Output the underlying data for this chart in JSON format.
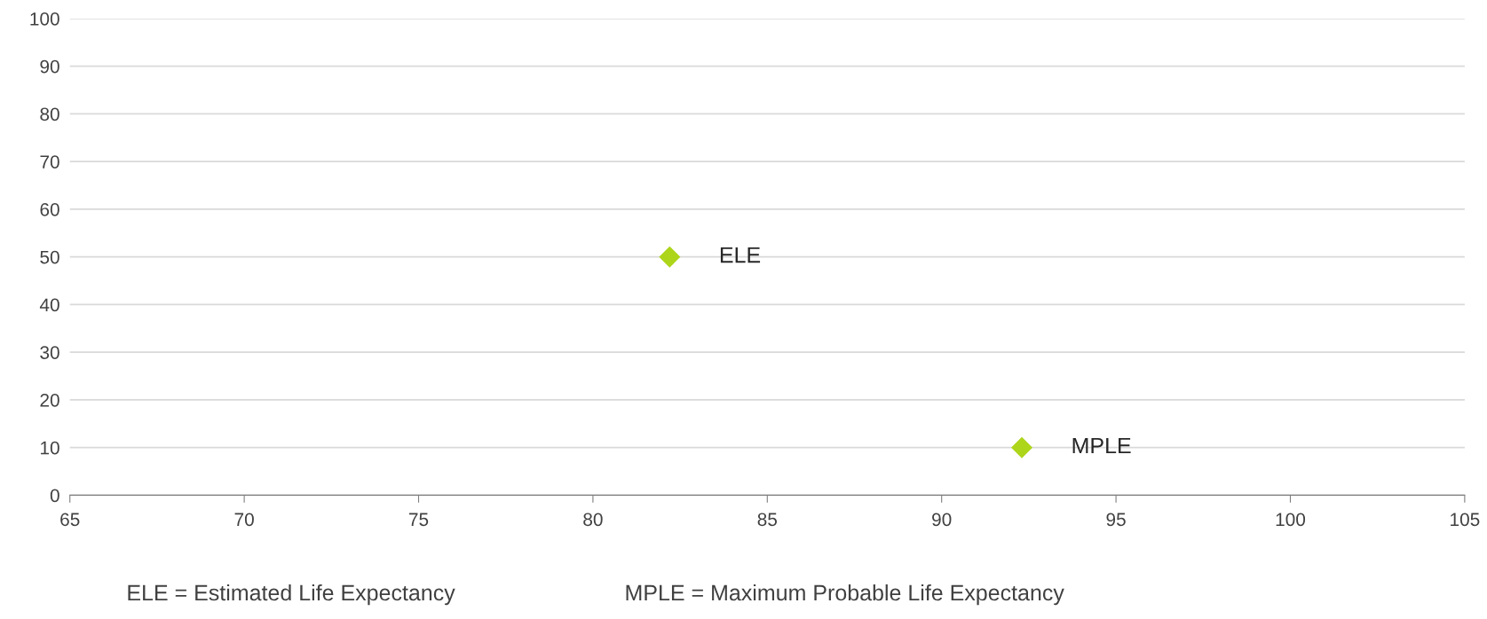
{
  "chart_data": {
    "type": "scatter",
    "x": [
      82.2,
      92.3
    ],
    "values": [
      50,
      10
    ],
    "color": "#add51a",
    "marker": "diamond",
    "xlim": [
      65,
      105
    ],
    "xticks": [
      65,
      70,
      75,
      80,
      85,
      90,
      95,
      100,
      105
    ],
    "ylim": [
      0,
      100
    ],
    "yticks": [
      0,
      10,
      20,
      30,
      40,
      50,
      60,
      70,
      80,
      90,
      100
    ],
    "grid": "y",
    "annotations": [
      {
        "text": "ELE",
        "x": 82.2,
        "y": 50
      },
      {
        "text": "MPLE",
        "x": 92.3,
        "y": 10
      },
      "ELE = Estimated Life Expectancy",
      "MPLE = Maximum Probable Life Expectancy"
    ]
  }
}
